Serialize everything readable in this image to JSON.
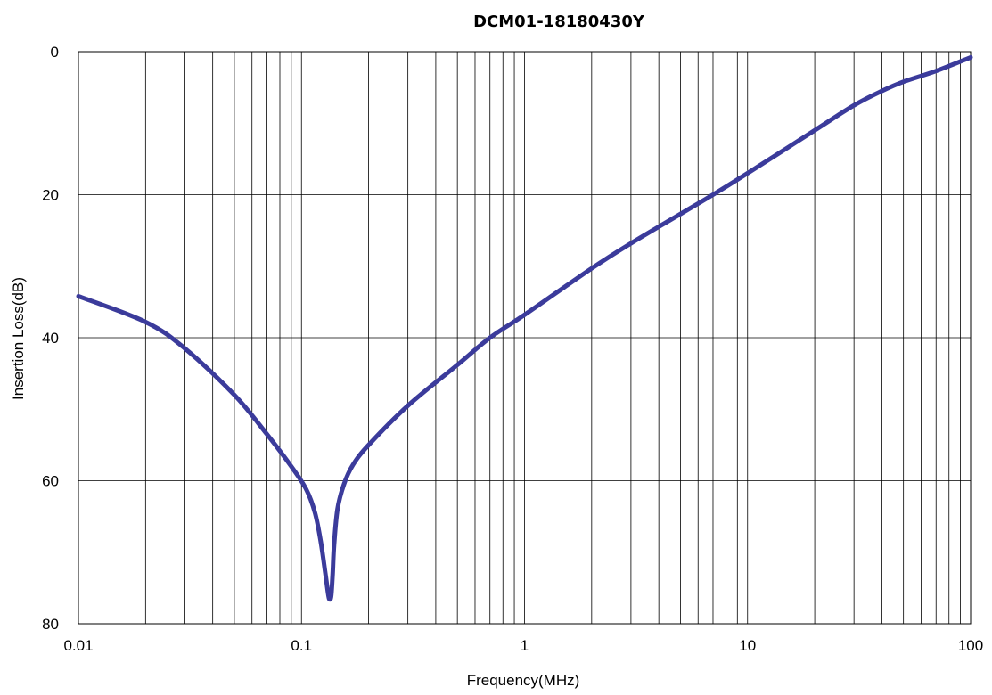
{
  "chart_data": {
    "type": "line",
    "title": "DCM01-18180430Y",
    "xlabel": "Frequency(MHz)",
    "ylabel": "Insertion Loss(dB)",
    "x_scale": "log",
    "xlim": [
      0.01,
      100
    ],
    "ylim": [
      0,
      80
    ],
    "y_inverted": true,
    "grid": true,
    "x_ticks": [
      "0.01",
      "0.1",
      "1",
      "10",
      "100"
    ],
    "y_ticks": [
      "0",
      "20",
      "40",
      "60",
      "80"
    ],
    "series": [
      {
        "color": "#3B3B9B",
        "x": [
          0.01,
          0.02,
          0.03,
          0.05,
          0.07,
          0.09,
          0.105,
          0.115,
          0.122,
          0.128,
          0.132,
          0.134,
          0.136,
          0.138,
          0.14,
          0.145,
          0.155,
          0.17,
          0.2,
          0.3,
          0.5,
          0.7,
          1,
          2,
          3,
          5,
          7,
          10,
          20,
          30,
          40,
          50,
          70,
          100
        ],
        "y": [
          34.2,
          37.8,
          41.5,
          48,
          53.5,
          58,
          61.2,
          64.5,
          68.5,
          73,
          76,
          76.6,
          76,
          73,
          69,
          64,
          60.5,
          57.8,
          55,
          49.5,
          43.8,
          40,
          36.8,
          30.3,
          26.8,
          22.7,
          20,
          17,
          11,
          7.5,
          5.5,
          4.2,
          2.7,
          0.8
        ]
      }
    ]
  }
}
